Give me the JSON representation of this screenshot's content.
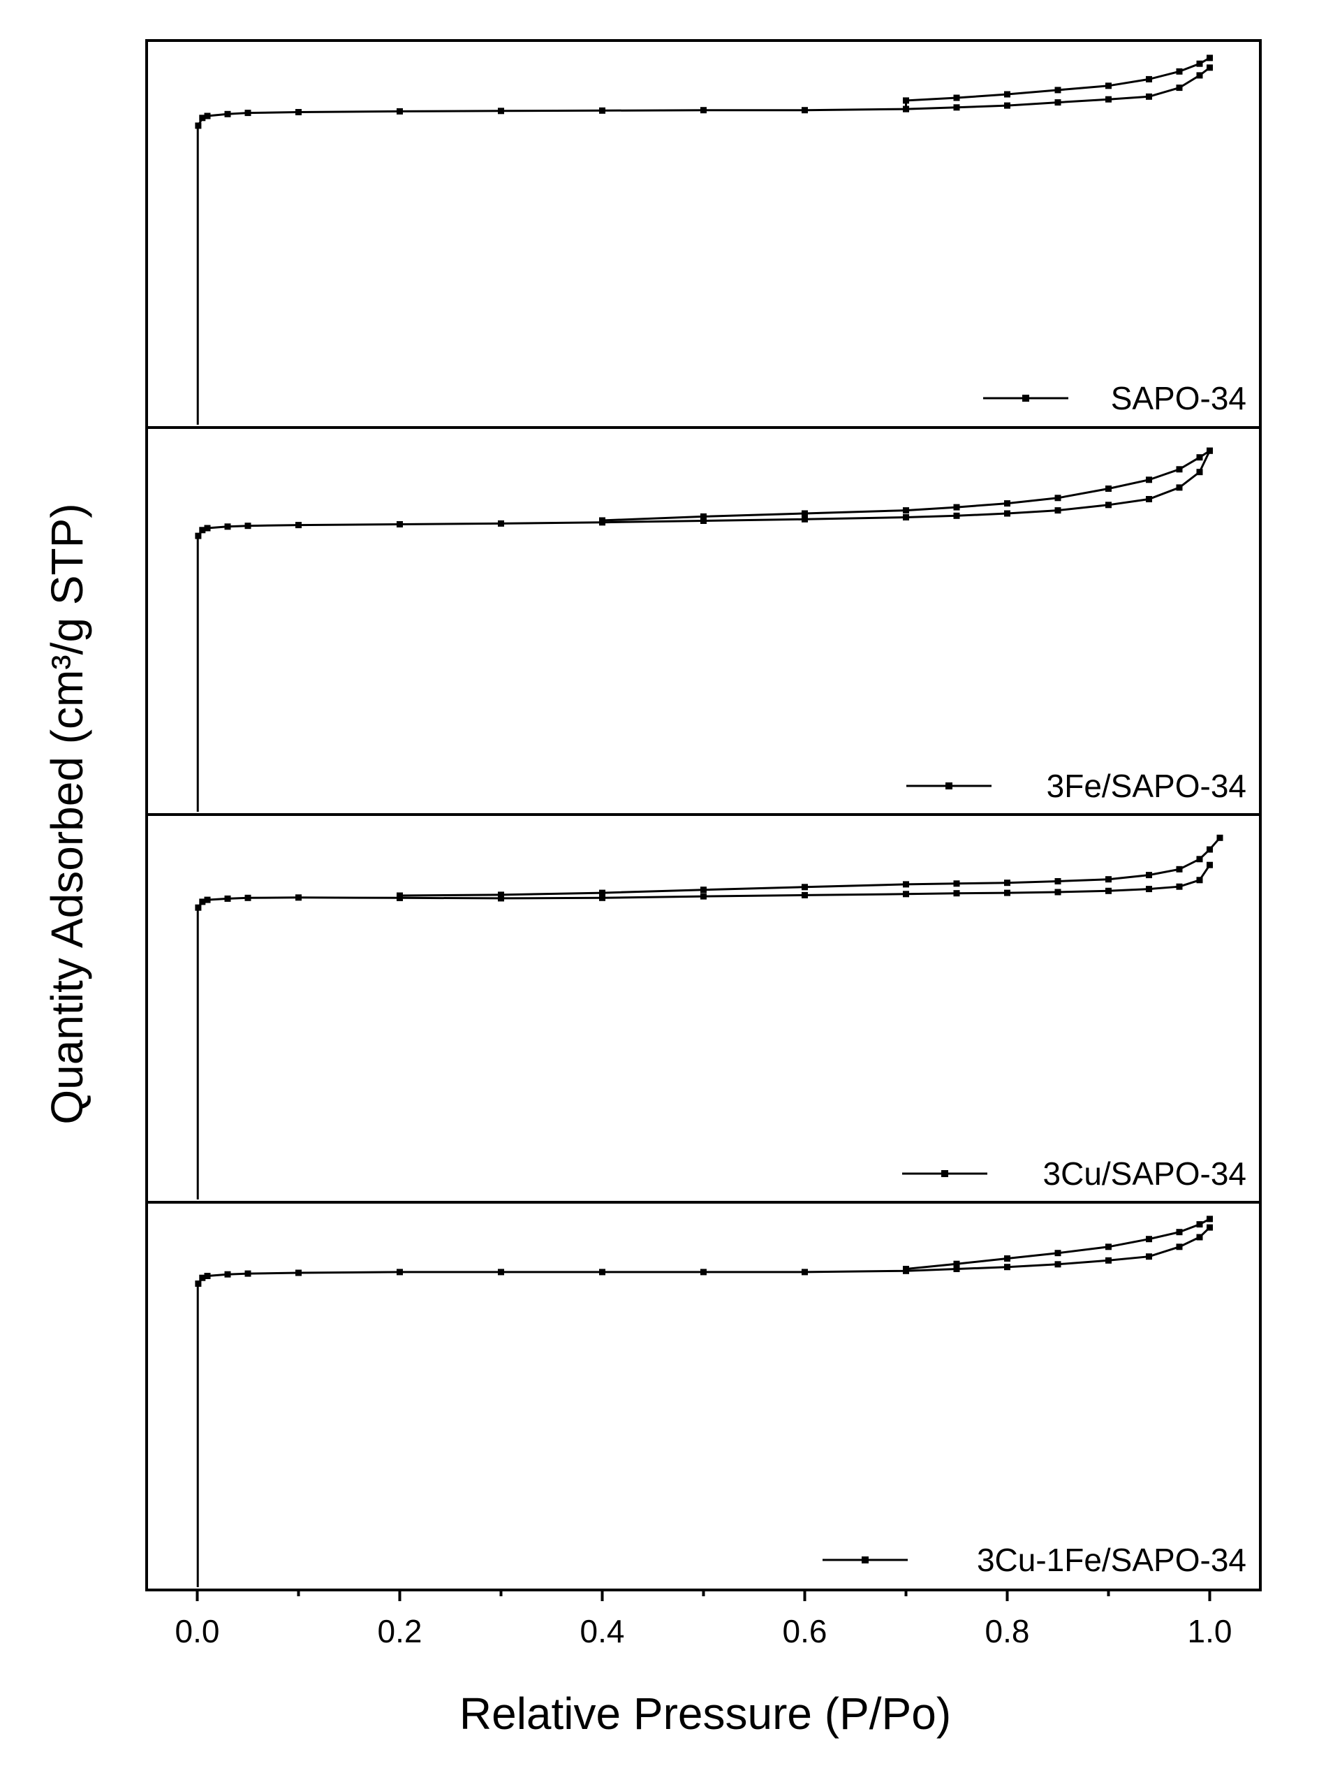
{
  "chart_data": {
    "type": "line",
    "xlabel": "Relative Pressure (P/Po)",
    "ylabel": "Quantity Adsorbed (cm³/g STP)",
    "xlim": [
      -0.05,
      1.05
    ],
    "xticks": [
      0.0,
      0.2,
      0.4,
      0.6,
      0.8,
      1.0
    ],
    "xtick_labels": [
      "0.0",
      "0.2",
      "0.4",
      "0.6",
      "0.8",
      "1.0"
    ],
    "y_tick_labels_shown": false,
    "grid": false,
    "legend_position": "bottom-right",
    "panels": [
      {
        "name": "SAPO-34",
        "ylim": [
          0,
          100
        ],
        "x_low": 0.0005,
        "y_low_start": 0,
        "y_low_end": 78,
        "adsorption": [
          [
            0.001,
            78
          ],
          [
            0.005,
            80
          ],
          [
            0.01,
            80.5
          ],
          [
            0.03,
            81
          ],
          [
            0.05,
            81.3
          ],
          [
            0.1,
            81.5
          ],
          [
            0.2,
            81.7
          ],
          [
            0.3,
            81.8
          ],
          [
            0.4,
            81.9
          ],
          [
            0.5,
            82
          ],
          [
            0.6,
            82
          ],
          [
            0.7,
            82.3
          ],
          [
            0.75,
            82.7
          ],
          [
            0.8,
            83.2
          ],
          [
            0.85,
            84
          ],
          [
            0.9,
            84.8
          ],
          [
            0.94,
            85.5
          ],
          [
            0.97,
            87.8
          ],
          [
            0.99,
            91
          ],
          [
            1.0,
            93
          ]
        ],
        "desorption": [
          [
            1.0,
            95.5
          ],
          [
            0.99,
            94
          ],
          [
            0.97,
            92
          ],
          [
            0.94,
            90
          ],
          [
            0.9,
            88.3
          ],
          [
            0.85,
            87.2
          ],
          [
            0.8,
            86.1
          ],
          [
            0.75,
            85.2
          ],
          [
            0.7,
            84.5
          ]
        ]
      },
      {
        "name": "3Fe/SAPO-34",
        "ylim": [
          0,
          100
        ],
        "x_low": 0.0005,
        "y_low_start": 0,
        "y_low_end": 72,
        "adsorption": [
          [
            0.001,
            72
          ],
          [
            0.005,
            73.5
          ],
          [
            0.01,
            74
          ],
          [
            0.03,
            74.4
          ],
          [
            0.05,
            74.6
          ],
          [
            0.1,
            74.8
          ],
          [
            0.2,
            75
          ],
          [
            0.3,
            75.2
          ],
          [
            0.4,
            75.5
          ],
          [
            0.5,
            75.9
          ],
          [
            0.6,
            76.3
          ],
          [
            0.7,
            76.8
          ],
          [
            0.75,
            77.2
          ],
          [
            0.8,
            77.8
          ],
          [
            0.85,
            78.6
          ],
          [
            0.9,
            80
          ],
          [
            0.94,
            81.5
          ],
          [
            0.97,
            84.5
          ],
          [
            0.99,
            88.5
          ],
          [
            1.0,
            94
          ]
        ],
        "desorption": [
          [
            1.0,
            94
          ],
          [
            0.99,
            92.3
          ],
          [
            0.97,
            89.2
          ],
          [
            0.94,
            86.5
          ],
          [
            0.9,
            84.2
          ],
          [
            0.85,
            81.8
          ],
          [
            0.8,
            80.4
          ],
          [
            0.75,
            79.4
          ],
          [
            0.7,
            78.6
          ],
          [
            0.6,
            77.8
          ],
          [
            0.5,
            77
          ],
          [
            0.4,
            76
          ]
        ]
      },
      {
        "name": "3Cu/SAPO-34",
        "ylim": [
          0,
          100
        ],
        "x_low": 0.0005,
        "y_low_start": 0,
        "y_low_end": 76,
        "adsorption": [
          [
            0.001,
            76
          ],
          [
            0.005,
            77.5
          ],
          [
            0.01,
            78
          ],
          [
            0.03,
            78.3
          ],
          [
            0.05,
            78.5
          ],
          [
            0.1,
            78.6
          ],
          [
            0.2,
            78.5
          ],
          [
            0.3,
            78.4
          ],
          [
            0.4,
            78.5
          ],
          [
            0.5,
            78.9
          ],
          [
            0.6,
            79.2
          ],
          [
            0.7,
            79.5
          ],
          [
            0.75,
            79.7
          ],
          [
            0.8,
            79.8
          ],
          [
            0.85,
            80
          ],
          [
            0.9,
            80.3
          ],
          [
            0.94,
            80.8
          ],
          [
            0.97,
            81.4
          ],
          [
            0.99,
            83.1
          ],
          [
            1.0,
            87
          ]
        ],
        "desorption": [
          [
            1.01,
            94
          ],
          [
            1.0,
            91
          ],
          [
            0.99,
            88.5
          ],
          [
            0.97,
            85.9
          ],
          [
            0.94,
            84.4
          ],
          [
            0.9,
            83.3
          ],
          [
            0.85,
            82.8
          ],
          [
            0.8,
            82.4
          ],
          [
            0.75,
            82.2
          ],
          [
            0.7,
            82
          ],
          [
            0.6,
            81.3
          ],
          [
            0.5,
            80.6
          ],
          [
            0.4,
            79.8
          ],
          [
            0.3,
            79.3
          ],
          [
            0.2,
            79.1
          ]
        ]
      },
      {
        "name": "3Cu-1Fe/SAPO-34",
        "ylim": [
          0,
          100
        ],
        "x_low": 0.0005,
        "y_low_start": 0,
        "y_low_end": 79,
        "adsorption": [
          [
            0.001,
            79
          ],
          [
            0.005,
            80.5
          ],
          [
            0.01,
            81
          ],
          [
            0.03,
            81.4
          ],
          [
            0.05,
            81.6
          ],
          [
            0.1,
            81.8
          ],
          [
            0.2,
            82
          ],
          [
            0.3,
            82
          ],
          [
            0.4,
            82
          ],
          [
            0.5,
            82
          ],
          [
            0.6,
            82
          ],
          [
            0.7,
            82.3
          ],
          [
            0.75,
            82.8
          ],
          [
            0.8,
            83.3
          ],
          [
            0.85,
            84
          ],
          [
            0.9,
            85
          ],
          [
            0.94,
            86
          ],
          [
            0.97,
            88.5
          ],
          [
            0.99,
            91
          ],
          [
            1.0,
            93.5
          ]
        ],
        "desorption": [
          [
            1.0,
            95.7
          ],
          [
            0.99,
            94.3
          ],
          [
            0.97,
            92.3
          ],
          [
            0.94,
            90.5
          ],
          [
            0.9,
            88.5
          ],
          [
            0.85,
            86.9
          ],
          [
            0.8,
            85.5
          ],
          [
            0.75,
            84.1
          ],
          [
            0.7,
            82.8
          ]
        ]
      }
    ]
  }
}
